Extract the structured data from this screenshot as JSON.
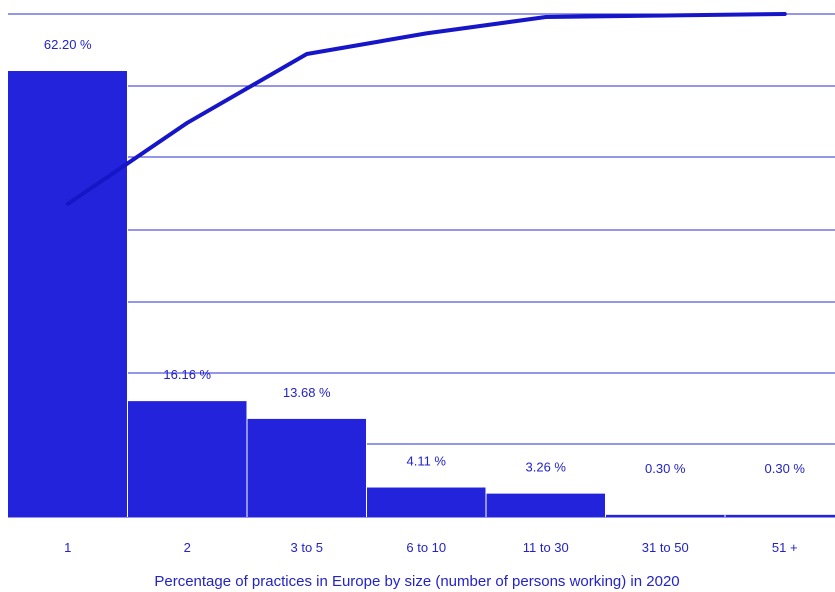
{
  "chart_data": {
    "type": "bar",
    "categories": [
      "1",
      "2",
      "3 to 5",
      "6 to 10",
      "11 to 30",
      "31 to 50",
      "51 +"
    ],
    "series": [
      {
        "values": [
          62.2,
          16.16,
          13.68,
          4.11,
          3.26,
          0.3,
          0.3
        ]
      }
    ],
    "data_labels": [
      "62.20 %",
      "16.16 %",
      "13.68 %",
      "4.11 %",
      "3.26 %",
      "0.30 %",
      "0.30 %"
    ],
    "cumulative": [
      62.2,
      78.36,
      92.04,
      96.15,
      99.41,
      99.71,
      100.0
    ],
    "xlabel": "Percentage of practices in Europe by size (number of persons working) in 2020",
    "ylabel": "",
    "ylim": [
      0,
      70
    ],
    "cumulative_ylim": [
      35,
      100
    ],
    "grid": true,
    "colors": {
      "bar": "#2323dc",
      "line": "#1616c8",
      "text": "#2323c8",
      "grid": "#2b2bd6"
    }
  }
}
